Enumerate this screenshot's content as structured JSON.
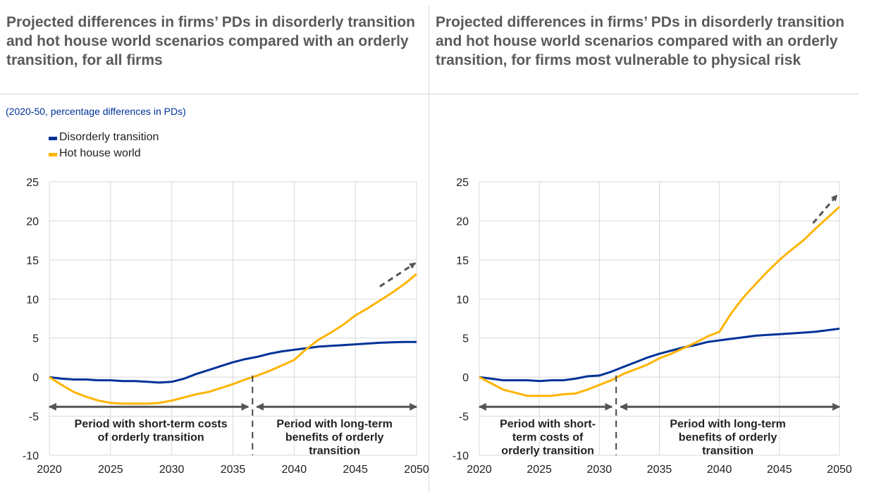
{
  "left_title": "Projected differences in firms’ PDs in disorderly transition and hot house world scenarios compared with an orderly transition, for all firms",
  "right_title": "Projected differences in firms’ PDs in disorderly transition and hot house world scenarios compared with an orderly transition, for firms most vulnerable to physical risk",
  "subtitle": "(2020-50, percentage differences in PDs)",
  "legend": [
    {
      "label": "Disorderly transition",
      "color": "#003299"
    },
    {
      "label": "Hot house world",
      "color": "#ffb400"
    }
  ],
  "chart_data": [
    {
      "type": "line",
      "title": "Projected differences in firms’ PDs in disorderly transition and hot house world scenarios compared with an orderly transition, for all firms",
      "xlabel": "",
      "ylabel": "",
      "xlim": [
        2020,
        2050
      ],
      "ylim": [
        -10,
        25
      ],
      "xticks": [
        "2020",
        "2025",
        "2030",
        "2035",
        "2040",
        "2045",
        "2050"
      ],
      "yticks": [
        "25",
        "20",
        "15",
        "10",
        "5",
        "0",
        "-5",
        "-10"
      ],
      "grid": true,
      "series": [
        {
          "name": "Disorderly transition",
          "color": "#003299",
          "x": [
            2020,
            2021,
            2022,
            2023,
            2024,
            2025,
            2026,
            2027,
            2028,
            2029,
            2030,
            2031,
            2032,
            2033,
            2034,
            2035,
            2036,
            2037,
            2038,
            2039,
            2040,
            2041,
            2042,
            2043,
            2044,
            2045,
            2046,
            2047,
            2048,
            2049,
            2050
          ],
          "y": [
            0,
            -0.2,
            -0.3,
            -0.3,
            -0.4,
            -0.4,
            -0.5,
            -0.5,
            -0.6,
            -0.7,
            -0.6,
            -0.2,
            0.4,
            0.9,
            1.4,
            1.9,
            2.3,
            2.6,
            3.0,
            3.3,
            3.5,
            3.7,
            3.9,
            4.0,
            4.1,
            4.2,
            4.3,
            4.4,
            4.45,
            4.5,
            4.5
          ]
        },
        {
          "name": "Hot house world",
          "color": "#ffb400",
          "x": [
            2020,
            2021,
            2022,
            2023,
            2024,
            2025,
            2026,
            2027,
            2028,
            2029,
            2030,
            2031,
            2032,
            2033,
            2034,
            2035,
            2036,
            2037,
            2038,
            2039,
            2040,
            2041,
            2042,
            2043,
            2044,
            2045,
            2046,
            2047,
            2048,
            2049,
            2050
          ],
          "y": [
            0,
            -1.0,
            -1.9,
            -2.5,
            -3.0,
            -3.3,
            -3.4,
            -3.4,
            -3.4,
            -3.3,
            -3.0,
            -2.6,
            -2.2,
            -1.9,
            -1.4,
            -0.9,
            -0.3,
            0.2,
            0.8,
            1.5,
            2.2,
            3.6,
            4.8,
            5.7,
            6.7,
            7.9,
            8.8,
            9.8,
            10.8,
            11.9,
            13.2
          ]
        }
      ],
      "arrow": {
        "from": [
          2047.0,
          11.6
        ],
        "to": [
          2049.9,
          14.6
        ]
      },
      "divider_year": 2036.6,
      "periods": [
        {
          "lines": [
            "Period with short-term costs",
            "of orderly transition"
          ],
          "from": 2020,
          "to": 2036.6
        },
        {
          "lines": [
            "Period with long-term",
            "benefits of orderly",
            "transition"
          ],
          "from": 2036.6,
          "to": 2050
        }
      ]
    },
    {
      "type": "line",
      "title": "Projected differences in firms’ PDs in disorderly transition and hot house world scenarios compared with an orderly transition, for firms most vulnerable to physical risk",
      "xlabel": "",
      "ylabel": "",
      "xlim": [
        2020,
        2050
      ],
      "ylim": [
        -10,
        25
      ],
      "xticks": [
        "2020",
        "2025",
        "2030",
        "2035",
        "2040",
        "2045",
        "2050"
      ],
      "yticks": [
        "25",
        "20",
        "15",
        "10",
        "5",
        "0",
        "-5",
        "-10"
      ],
      "grid": true,
      "series": [
        {
          "name": "Disorderly transition",
          "color": "#003299",
          "x": [
            2020,
            2021,
            2022,
            2023,
            2024,
            2025,
            2026,
            2027,
            2028,
            2029,
            2030,
            2031,
            2032,
            2033,
            2034,
            2035,
            2036,
            2037,
            2038,
            2039,
            2040,
            2041,
            2042,
            2043,
            2044,
            2045,
            2046,
            2047,
            2048,
            2049,
            2050
          ],
          "y": [
            0,
            -0.2,
            -0.4,
            -0.4,
            -0.4,
            -0.5,
            -0.4,
            -0.4,
            -0.2,
            0.1,
            0.2,
            0.7,
            1.3,
            1.9,
            2.5,
            3.0,
            3.4,
            3.8,
            4.1,
            4.5,
            4.7,
            4.9,
            5.1,
            5.3,
            5.4,
            5.5,
            5.6,
            5.7,
            5.8,
            6.0,
            6.2
          ]
        },
        {
          "name": "Hot house world",
          "color": "#ffb400",
          "x": [
            2020,
            2021,
            2022,
            2023,
            2024,
            2025,
            2026,
            2027,
            2028,
            2029,
            2030,
            2031,
            2032,
            2033,
            2034,
            2035,
            2036,
            2037,
            2038,
            2039,
            2040,
            2041,
            2042,
            2043,
            2044,
            2045,
            2046,
            2047,
            2048,
            2049,
            2050
          ],
          "y": [
            0,
            -0.8,
            -1.6,
            -2.0,
            -2.4,
            -2.4,
            -2.4,
            -2.2,
            -2.1,
            -1.6,
            -1.0,
            -0.4,
            0.4,
            1.0,
            1.6,
            2.4,
            3.0,
            3.7,
            4.4,
            5.2,
            5.8,
            8.2,
            10.2,
            11.9,
            13.5,
            15.0,
            16.3,
            17.5,
            19.0,
            20.4,
            21.8
          ]
        }
      ],
      "arrow": {
        "from": [
          2047.8,
          19.7
        ],
        "to": [
          2049.8,
          23.3
        ]
      },
      "divider_year": 2031.4,
      "periods": [
        {
          "lines": [
            "Period with short-",
            "term costs of",
            "orderly transition"
          ],
          "from": 2020,
          "to": 2031.4
        },
        {
          "lines": [
            "Period with long-term",
            "benefits of orderly",
            "transition"
          ],
          "from": 2031.4,
          "to": 2050
        }
      ]
    }
  ]
}
